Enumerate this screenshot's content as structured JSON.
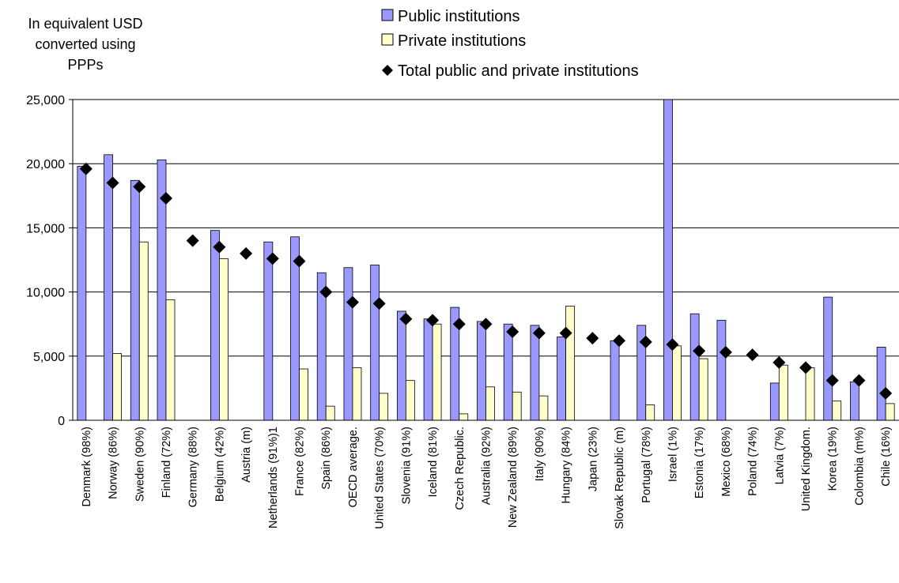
{
  "chart_data": {
    "type": "bar",
    "ylabel_lines": [
      "In equivalent USD",
      "converted using",
      "PPPs"
    ],
    "legend_position": "top-center",
    "grid": true,
    "ylim": [
      0,
      25000
    ],
    "yticks": [
      "0",
      "5,000",
      "10,000",
      "15,000",
      "20,000",
      "25,000"
    ],
    "categories": [
      "Denmark (98%)",
      "Norway (86%)",
      "Sweden (90%)",
      "Finland (72%)",
      "Germany (88%)",
      "Belgium (42%)",
      "Austria (m)",
      "Netherlands (91%)1",
      "France (82%)",
      "Spain (86%)",
      "OECD average.",
      "United States (70%)",
      "Slovenia (91%)",
      "Iceland (81%)",
      "Czech Republic.",
      "Australia (92%)",
      "New Zealand (89%)",
      "Italy (90%)",
      "Hungary (84%)",
      "Japan (23%)",
      "Slovak Republic (m)",
      "Portugal (78%)",
      "Israel (1%)",
      "Estonia (17%)",
      "Mexico (68%)",
      "Poland (74%)",
      "Latvia (7%)",
      "United Kingdom.",
      "Korea (19%)",
      "Colombia (m%)",
      "Chile (16%)"
    ],
    "series": [
      {
        "name": "Public institutions",
        "kind": "bar",
        "color": "#9999ff",
        "values": [
          19800,
          20700,
          18700,
          20300,
          null,
          14800,
          null,
          13900,
          14300,
          11500,
          11900,
          12100,
          8500,
          7900,
          8800,
          7700,
          7500,
          7400,
          6500,
          null,
          6200,
          7400,
          25000,
          8300,
          7800,
          null,
          2900,
          null,
          9600,
          3000,
          5700
        ]
      },
      {
        "name": "Private institutions",
        "kind": "bar",
        "color": "#ffffcc",
        "values": [
          null,
          5200,
          13900,
          9400,
          null,
          12600,
          null,
          null,
          4000,
          1100,
          4100,
          2100,
          3100,
          7500,
          500,
          2600,
          2200,
          1900,
          8900,
          null,
          null,
          1200,
          5800,
          4800,
          null,
          null,
          4300,
          4100,
          1500,
          null,
          1300
        ]
      },
      {
        "name": "Total public and private institutions",
        "kind": "marker",
        "color": "#000000",
        "values": [
          19600,
          18500,
          18200,
          17300,
          14000,
          13500,
          13000,
          12600,
          12400,
          10000,
          9200,
          9100,
          7900,
          7800,
          7500,
          7500,
          6900,
          6800,
          6800,
          6400,
          6200,
          6100,
          5900,
          5400,
          5300,
          5100,
          4500,
          4100,
          3100,
          3100,
          2100
        ]
      }
    ]
  }
}
